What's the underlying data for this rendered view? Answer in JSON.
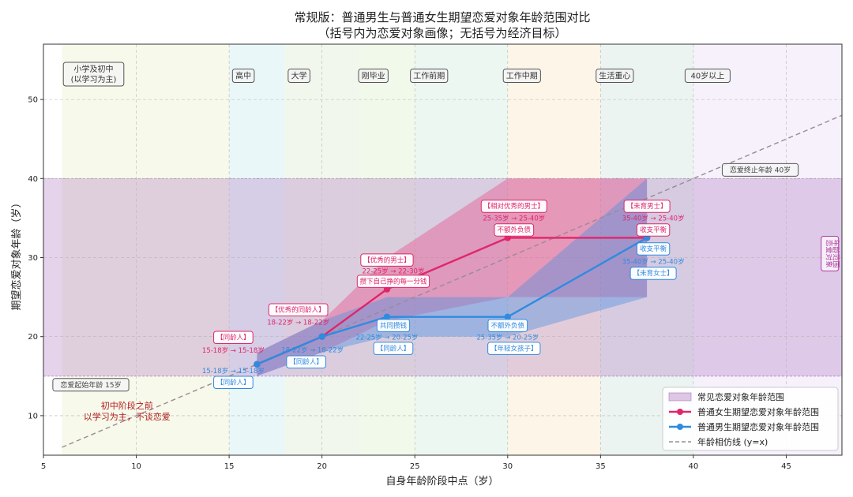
{
  "chart_data": {
    "type": "line",
    "title": "常规版：普通男生与普通女生期望恋爱对象年龄范围对比",
    "subtitle": "（括号内为恋爱对象画像；无括号为经济目标）",
    "xlabel": "自身年龄阶段中点（岁）",
    "ylabel": "期望恋爱对象年龄（岁）",
    "xlim": [
      5,
      48
    ],
    "ylim": [
      5,
      57
    ],
    "xticks": [
      5,
      10,
      15,
      20,
      25,
      30,
      35,
      40,
      45
    ],
    "yticks": [
      10,
      20,
      30,
      40,
      50
    ],
    "grid": true,
    "legend_position": "bottom-right",
    "colors": {
      "female": "#e0266b",
      "male": "#2f8be0",
      "band": "#a060b8",
      "identity": "#9a8a96",
      "female_fill": "#e8508a",
      "male_fill": "#4f8fe0"
    },
    "stage_bands": [
      {
        "label": "小学及初中\n(以学习为主)",
        "x0": 6,
        "x1": 15,
        "color": "#f6f8e8"
      },
      {
        "label": "高中",
        "x0": 15,
        "x1": 18,
        "color": "#e6f6f8"
      },
      {
        "label": "大学",
        "x0": 18,
        "x1": 22,
        "color": "#eef6ea"
      },
      {
        "label": "刚毕业",
        "x0": 22,
        "x1": 25,
        "color": "#eef8e8"
      },
      {
        "label": "工作前期",
        "x0": 25,
        "x1": 30,
        "color": "#eaf6ee"
      },
      {
        "label": "工作中期",
        "x0": 30,
        "x1": 35,
        "color": "#fdf3e4"
      },
      {
        "label": "生活重心",
        "x0": 35,
        "x1": 40,
        "color": "#e8f2ee"
      },
      {
        "label": "40岁以上",
        "x0": 40,
        "x1": 48,
        "color": "#f4eefa"
      }
    ],
    "common_range": {
      "y0": 15,
      "y1": 40,
      "label": "常见恋爱对象年龄范围"
    },
    "side_label": "恋爱对象\n年龄范围",
    "start_label": "恋爱起始年龄 15岁",
    "end_label": "恋爱终止年龄 40岁",
    "pre_stage_note": "初中阶段之前\n以学习为主，不谈恋爱",
    "identity_line": {
      "x": [
        6,
        48
      ],
      "y": [
        6,
        48
      ],
      "label": "年龄相仿线 (y=x)"
    },
    "series": [
      {
        "name": "普通女生期望恋爱对象年龄范围",
        "key": "female",
        "x": [
          16.5,
          20,
          23.5,
          30,
          37.5
        ],
        "y": [
          16.5,
          20,
          26,
          32.5,
          32.5
        ],
        "band_x": [
          16.5,
          20,
          23.5,
          30,
          37.5
        ],
        "band_low": [
          15,
          18,
          22,
          25,
          25
        ],
        "band_high": [
          18,
          22,
          30,
          40,
          40
        ],
        "labels": [
          {
            "persona": "【同龄人】",
            "range": "15-18岁 → 15-18岁",
            "goal": ""
          },
          {
            "persona": "【优秀的同龄人】",
            "range": "18-22岁 → 18-22岁",
            "goal": ""
          },
          {
            "persona": "【优秀的男士】",
            "range": "22-25岁 → 22-30岁",
            "goal": "攒下自己挣的每一分钱"
          },
          {
            "persona": "【相对优秀的男士】",
            "range": "25-35岁 → 25-40岁",
            "goal": "不额外负债"
          },
          {
            "persona": "【未育男士】",
            "range": "35-40岁 → 25-40岁",
            "goal": "收支平衡"
          }
        ]
      },
      {
        "name": "普通男生期望恋爱对象年龄范围",
        "key": "male",
        "x": [
          16.5,
          20,
          23.5,
          30,
          37.5
        ],
        "y": [
          16.5,
          20,
          22.5,
          22.5,
          32.5
        ],
        "band_x": [
          16.5,
          20,
          23.5,
          30,
          37.5
        ],
        "band_low": [
          15,
          18,
          20,
          20,
          25
        ],
        "band_high": [
          18,
          22,
          25,
          25,
          40
        ],
        "labels": [
          {
            "persona": "【同龄人】",
            "range": "15-18岁 → 15-18岁",
            "goal": ""
          },
          {
            "persona": "【同龄人】",
            "range": "18-22岁 → 18-22岁",
            "goal": ""
          },
          {
            "persona": "【同龄人】",
            "range": "22-25岁 → 20-25岁",
            "goal": "共同攒钱"
          },
          {
            "persona": "【年轻女孩子】",
            "range": "25-35岁 → 20-25岁",
            "goal": "不额外负债"
          },
          {
            "persona": "【未育女士】",
            "range": "35-40岁 → 25-40岁",
            "goal": "收支平衡"
          }
        ]
      }
    ]
  }
}
